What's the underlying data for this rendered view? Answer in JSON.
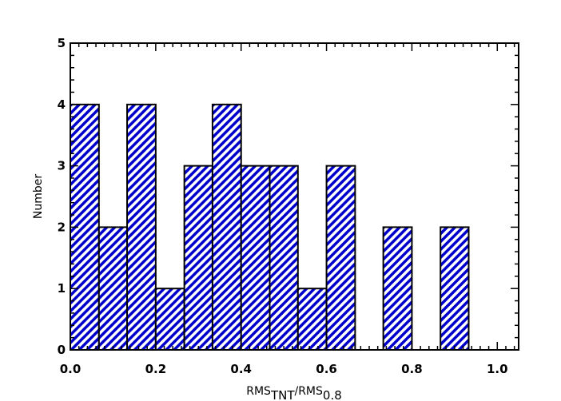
{
  "chart_data": {
    "type": "bar",
    "bins": [
      {
        "x0": 0.0,
        "x1": 0.067,
        "count": 4
      },
      {
        "x0": 0.067,
        "x1": 0.133,
        "count": 2
      },
      {
        "x0": 0.133,
        "x1": 0.2,
        "count": 4
      },
      {
        "x0": 0.2,
        "x1": 0.267,
        "count": 1
      },
      {
        "x0": 0.267,
        "x1": 0.333,
        "count": 3
      },
      {
        "x0": 0.333,
        "x1": 0.4,
        "count": 4
      },
      {
        "x0": 0.4,
        "x1": 0.467,
        "count": 3
      },
      {
        "x0": 0.467,
        "x1": 0.533,
        "count": 3
      },
      {
        "x0": 0.533,
        "x1": 0.6,
        "count": 1
      },
      {
        "x0": 0.6,
        "x1": 0.667,
        "count": 3
      },
      {
        "x0": 0.667,
        "x1": 0.733,
        "count": 0
      },
      {
        "x0": 0.733,
        "x1": 0.8,
        "count": 2
      },
      {
        "x0": 0.8,
        "x1": 0.867,
        "count": 0
      },
      {
        "x0": 0.867,
        "x1": 0.933,
        "count": 2
      }
    ],
    "xlim": [
      0.0,
      1.05
    ],
    "ylim": [
      0,
      5
    ],
    "x_ticks": [
      "0.0",
      "0.2",
      "0.4",
      "0.6",
      "0.8",
      "1.0"
    ],
    "y_ticks": [
      "0",
      "1",
      "2",
      "3",
      "4",
      "5"
    ],
    "ylabel": "Number",
    "xlabel": {
      "main": "RMS",
      "sub1": "TNT",
      "slash": "/RMS",
      "sub2": "0.8"
    },
    "fill": "hatched",
    "hatch_color": "#0000cc",
    "edge_color": "#000000",
    "grid": false
  }
}
